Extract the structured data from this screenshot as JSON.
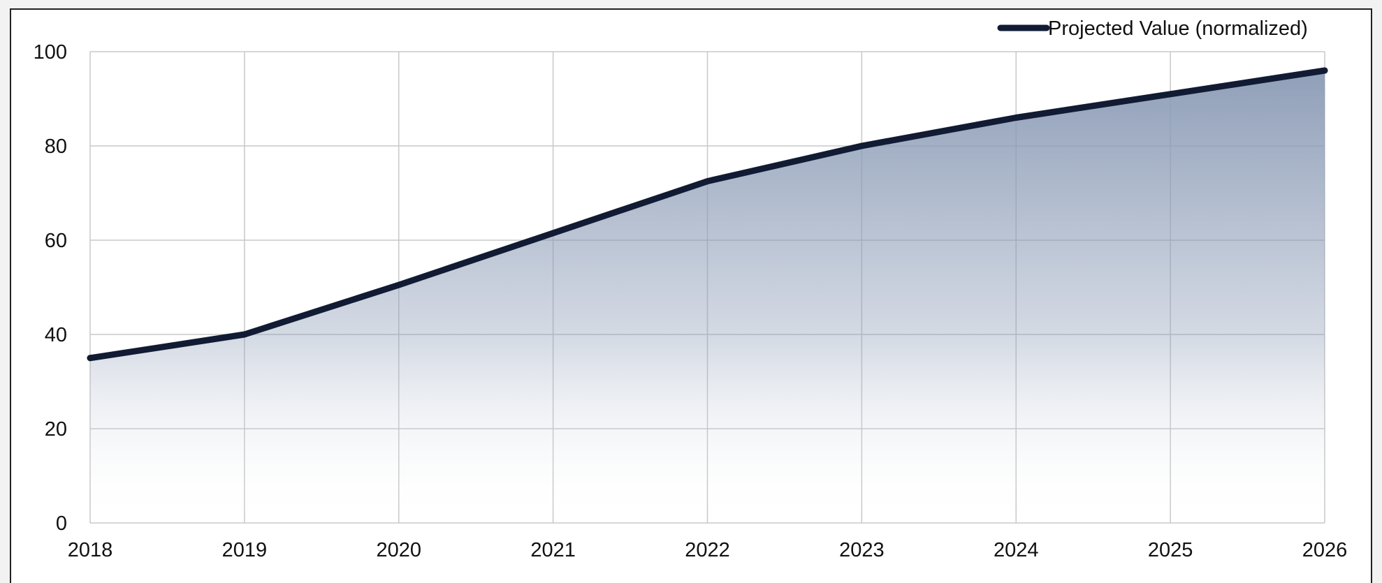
{
  "chart_data": {
    "type": "area",
    "title": "",
    "xlabel": "",
    "ylabel": "",
    "x": [
      2018,
      2019,
      2020,
      2021,
      2022,
      2023,
      2024,
      2025,
      2026
    ],
    "series": [
      {
        "name": "Projected Value (normalized)",
        "values": [
          35,
          40,
          50.5,
          61.5,
          72.5,
          80,
          86,
          91,
          96
        ]
      }
    ],
    "xlim": [
      2018,
      2026
    ],
    "ylim": [
      0,
      100
    ],
    "yticks": [
      0,
      20,
      40,
      60,
      80,
      100
    ],
    "xticks": [
      "2018",
      "2019",
      "2020",
      "2021",
      "2022",
      "2023",
      "2024",
      "2025",
      "2026"
    ],
    "grid": true,
    "legend": "top-right",
    "colors": {
      "line": "#111b33",
      "fill_top": "#8a9ab5",
      "fill_bottom": "#ffffff",
      "grid": "#c8c8c8"
    }
  }
}
